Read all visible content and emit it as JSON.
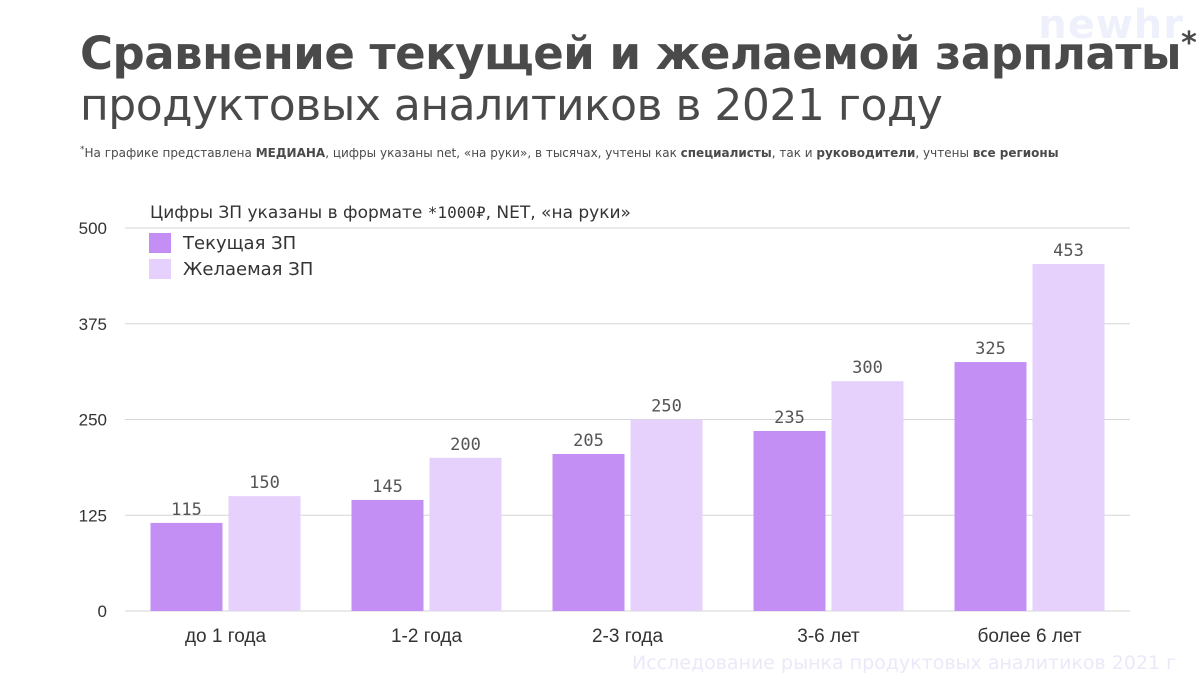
{
  "logo": "newhr",
  "title": {
    "line1": "Сравнение текущей и желаемой зарплаты",
    "star": "*",
    "line2": "продуктовых аналитиков в 2021 году"
  },
  "note": {
    "star": "*",
    "p1": "На графике представлена ",
    "b1": "МЕДИАНА",
    "p2": ", цифры указаны net, «на руки», в тысячах, учтены как ",
    "b2": "специалисты",
    "p3": ", так и ",
    "b3": "руководители",
    "p4": ", учтены ",
    "b4": "все регионы"
  },
  "footer": "Исследование рынка продуктовых аналитиков 2021 г",
  "colors": {
    "current": "#c48ff5",
    "desired": "#e5d1fb",
    "grid": "#d6d6d6",
    "text": "#333333"
  },
  "chart_data": {
    "type": "bar",
    "title": "Цифры ЗП указаны в формате *1000₽, NET, «на руки»",
    "title_parts": {
      "a": "Цифры ЗП указаны в формате ",
      "mono": "*1000₽",
      "b": ", NET, «на руки»"
    },
    "categories": [
      "до 1 года",
      "1-2 года",
      "2-3 года",
      "3-6 лет",
      "более 6 лет"
    ],
    "series": [
      {
        "name": "Текущая ЗП",
        "values": [
          115,
          145,
          205,
          235,
          325
        ]
      },
      {
        "name": "Желаемая ЗП",
        "values": [
          150,
          200,
          250,
          300,
          453
        ]
      }
    ],
    "yticks": [
      0,
      125,
      250,
      375,
      500
    ],
    "ylim": [
      0,
      500
    ],
    "grid": true,
    "legend": "top-left"
  }
}
